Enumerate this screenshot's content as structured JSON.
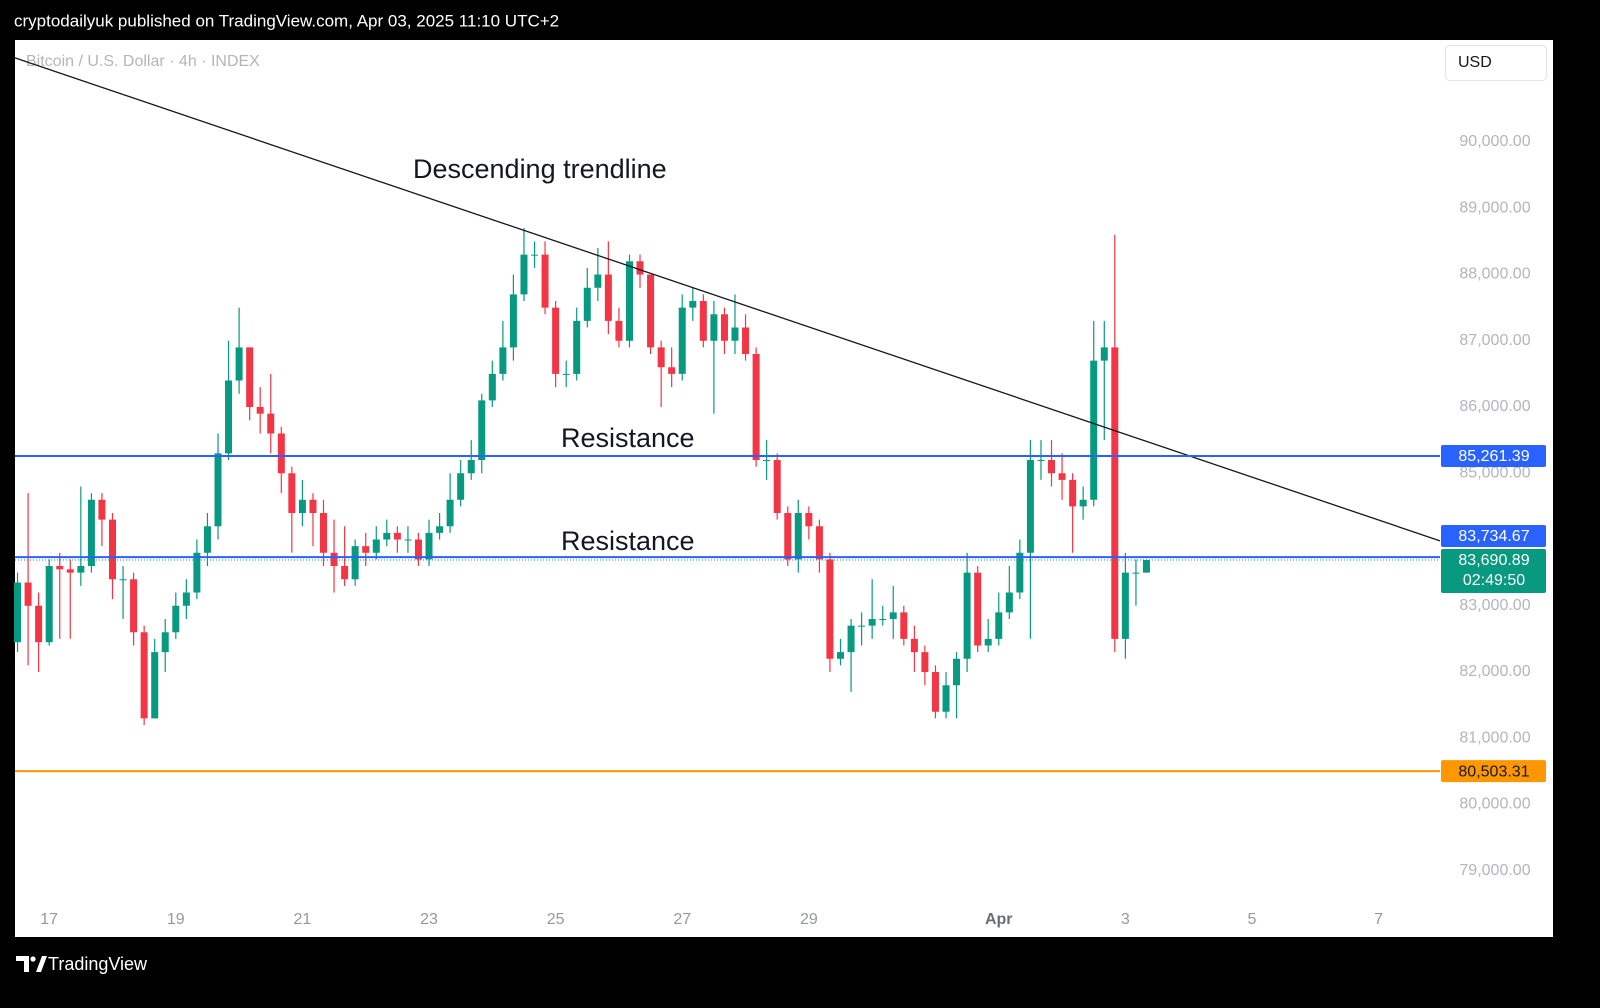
{
  "chart_data": {
    "type": "candlestick",
    "publisher": "cryptodailyuk published on TradingView.com, Apr 03, 2025 11:10 UTC+2",
    "symbol": "Bitcoin / U.S. Dollar · 4h · INDEX",
    "currency": "USD",
    "brand": "TradingView",
    "annotations": [
      "Descending trendline",
      "Resistance",
      "Resistance"
    ],
    "up_color": "#089981",
    "down_color": "#f23645",
    "x": [
      16.5,
      16.667,
      16.833,
      17,
      17.167,
      17.333,
      17.5,
      17.667,
      17.833,
      18,
      18.167,
      18.333,
      18.5,
      18.667,
      18.833,
      19,
      19.167,
      19.333,
      19.5,
      19.667,
      19.833,
      20,
      20.167,
      20.333,
      20.5,
      20.667,
      20.833,
      21,
      21.167,
      21.333,
      21.5,
      21.667,
      21.833,
      22,
      22.167,
      22.333,
      22.5,
      22.667,
      22.833,
      23,
      23.167,
      23.333,
      23.5,
      23.667,
      23.833,
      24,
      24.167,
      24.333,
      24.5,
      24.667,
      24.833,
      25,
      25.167,
      25.333,
      25.5,
      25.667,
      25.833,
      26,
      26.167,
      26.333,
      26.5,
      26.667,
      26.833,
      27,
      27.167,
      27.333,
      27.5,
      27.667,
      27.833,
      28,
      28.167,
      28.333,
      28.5,
      28.667,
      28.833,
      29,
      29.167,
      29.333,
      29.5,
      29.667,
      29.833,
      30,
      30.167,
      30.333,
      30.5,
      30.667,
      30.833,
      31,
      31.167,
      31.333,
      31.5,
      31.667,
      31.833,
      32,
      32.167,
      32.333,
      32.5,
      32.667,
      32.833,
      33,
      33.167,
      33.333,
      33.5,
      33.667,
      33.833,
      34,
      34.167,
      34.333
    ],
    "open": [
      82450,
      83350,
      83000,
      82450,
      83600,
      83550,
      83500,
      83600,
      84600,
      84300,
      83400,
      83400,
      82600,
      81300,
      82300,
      82600,
      83000,
      83200,
      83800,
      84200,
      85300,
      86400,
      86900,
      86000,
      85900,
      85600,
      85000,
      84400,
      84600,
      84400,
      83800,
      83600,
      83400,
      83900,
      83800,
      84000,
      84100,
      84000,
      84000,
      83700,
      84100,
      84200,
      84600,
      85000,
      85200,
      86100,
      86500,
      86900,
      87700,
      88300,
      88300,
      87500,
      86500,
      86500,
      87300,
      87800,
      88000,
      87300,
      87000,
      88200,
      88000,
      86900,
      86600,
      86500,
      87500,
      87600,
      87000,
      87400,
      87000,
      87200,
      86800,
      85200,
      85200,
      84400,
      83700,
      84400,
      84200,
      83700,
      82200,
      82300,
      82700,
      82700,
      82800,
      82800,
      82900,
      82500,
      82300,
      82000,
      81400,
      81800,
      82200,
      83500,
      82400,
      82500,
      82900,
      83200,
      83800,
      85200,
      85200,
      85000,
      84900,
      84500,
      84600,
      86700,
      86900,
      82500,
      83500,
      83500
    ],
    "high": [
      83500,
      84700,
      83200,
      83700,
      83800,
      83700,
      84800,
      84700,
      84700,
      84400,
      83600,
      83500,
      82700,
      82500,
      82800,
      83200,
      83400,
      84000,
      84400,
      85600,
      87000,
      87500,
      86900,
      86300,
      86500,
      85700,
      85100,
      84900,
      84700,
      84600,
      84300,
      84200,
      84000,
      84100,
      84200,
      84300,
      84200,
      84200,
      84100,
      84300,
      84400,
      85000,
      85200,
      85500,
      86200,
      86700,
      87300,
      88000,
      88700,
      88500,
      88500,
      87600,
      86700,
      87500,
      88100,
      88400,
      88500,
      87500,
      88300,
      88300,
      88000,
      87000,
      86900,
      87700,
      87800,
      87700,
      87600,
      87500,
      87700,
      87400,
      86900,
      85500,
      85300,
      84500,
      84600,
      84500,
      84300,
      83800,
      82500,
      82800,
      82900,
      83400,
      83000,
      83300,
      83000,
      82700,
      82400,
      82100,
      82000,
      82300,
      83800,
      83600,
      82800,
      83200,
      83600,
      84000,
      85500,
      85500,
      85500,
      85300,
      85000,
      84800,
      87300,
      87300,
      88600,
      83800,
      83700,
      83700
    ],
    "low": [
      82300,
      82100,
      82000,
      82400,
      82500,
      82500,
      83300,
      83500,
      83900,
      83100,
      82800,
      82400,
      81200,
      81300,
      82000,
      82500,
      82800,
      83100,
      83600,
      84000,
      85200,
      86200,
      85800,
      85600,
      85300,
      84700,
      83800,
      84200,
      83900,
      83600,
      83200,
      83300,
      83300,
      83600,
      83700,
      83900,
      83800,
      83800,
      83600,
      83600,
      84000,
      84100,
      84500,
      84900,
      85000,
      86000,
      86400,
      86700,
      87600,
      88100,
      87400,
      86300,
      86300,
      86400,
      87200,
      87600,
      87100,
      86900,
      86900,
      87800,
      86800,
      86000,
      86300,
      86400,
      87300,
      86900,
      85900,
      86800,
      86800,
      86700,
      85100,
      84900,
      84300,
      83600,
      83500,
      84000,
      83500,
      82000,
      82100,
      81700,
      82400,
      82500,
      82700,
      82500,
      82400,
      82000,
      81800,
      81300,
      81300,
      81300,
      82000,
      82300,
      82300,
      82400,
      82800,
      83100,
      82500,
      84900,
      84800,
      84600,
      83800,
      84300,
      84500,
      85500,
      82300,
      82200,
      83000,
      83500
    ],
    "close": [
      83350,
      83000,
      82450,
      83600,
      83550,
      83500,
      83600,
      84600,
      84300,
      83400,
      83400,
      82600,
      81300,
      82300,
      82600,
      83000,
      83200,
      83800,
      84200,
      85300,
      86400,
      86900,
      86000,
      85900,
      85600,
      85000,
      84400,
      84600,
      84400,
      83800,
      83600,
      83400,
      83900,
      83800,
      84000,
      84100,
      84000,
      84000,
      83700,
      84100,
      84200,
      84600,
      85000,
      85200,
      86100,
      86500,
      86900,
      87700,
      88300,
      88300,
      87500,
      86500,
      86500,
      87300,
      87800,
      88000,
      87300,
      87000,
      88200,
      88000,
      86900,
      86600,
      86500,
      87500,
      87600,
      87000,
      87400,
      87000,
      87200,
      86800,
      85200,
      85200,
      84400,
      83700,
      84400,
      84200,
      83700,
      82200,
      82300,
      82700,
      82700,
      82800,
      82800,
      82900,
      82500,
      82300,
      82000,
      81400,
      81800,
      82200,
      83500,
      82400,
      82500,
      82900,
      83200,
      83800,
      85200,
      85200,
      85000,
      84900,
      84500,
      84600,
      86700,
      86900,
      82500,
      83500,
      83500,
      83690.89
    ],
    "xlim": [
      16.46,
      38.97
    ],
    "xticks": [
      17,
      19,
      21,
      23,
      25,
      27,
      29,
      {
        "value": 32,
        "label": "Apr"
      },
      {
        "value": 34,
        "label": "3"
      },
      {
        "value": 36,
        "label": "5"
      },
      {
        "value": 38,
        "label": "7"
      }
    ],
    "ylim": [
      78000,
      91540
    ],
    "yticks": [
      {
        "value": 79000,
        "label": "79,000.00"
      },
      {
        "value": 80000,
        "label": "80,000.00"
      },
      {
        "value": 81000,
        "label": "81,000.00"
      },
      {
        "value": 82000,
        "label": "82,000.00"
      },
      {
        "value": 83000,
        "label": "83,000.00"
      },
      {
        "value": 84000,
        "label": "84,000.00"
      },
      {
        "value": 85000,
        "label": "85,000.00"
      },
      {
        "value": 86000,
        "label": "86,000.00"
      },
      {
        "value": 87000,
        "label": "87,000.00"
      },
      {
        "value": 88000,
        "label": "88,000.00"
      },
      {
        "value": 89000,
        "label": "89,000.00"
      },
      {
        "value": 90000,
        "label": "90,000.00"
      }
    ],
    "levels": [
      {
        "value": 85261.39,
        "label": "85,261.39",
        "color": "#2962ff"
      },
      {
        "value": 83734.67,
        "label": "83,734.67",
        "color": "#2962ff"
      },
      {
        "value": 80503.31,
        "label": "80,503.31",
        "color": "#ff9800"
      }
    ],
    "last_price": {
      "value": 83690.89,
      "label": "83,690.89",
      "countdown": "02:49:50",
      "color": "#089981"
    },
    "trendline": {
      "x": [
        16.46,
        38.97
      ],
      "y": [
        91270,
        83980
      ],
      "color": "#131722"
    }
  }
}
